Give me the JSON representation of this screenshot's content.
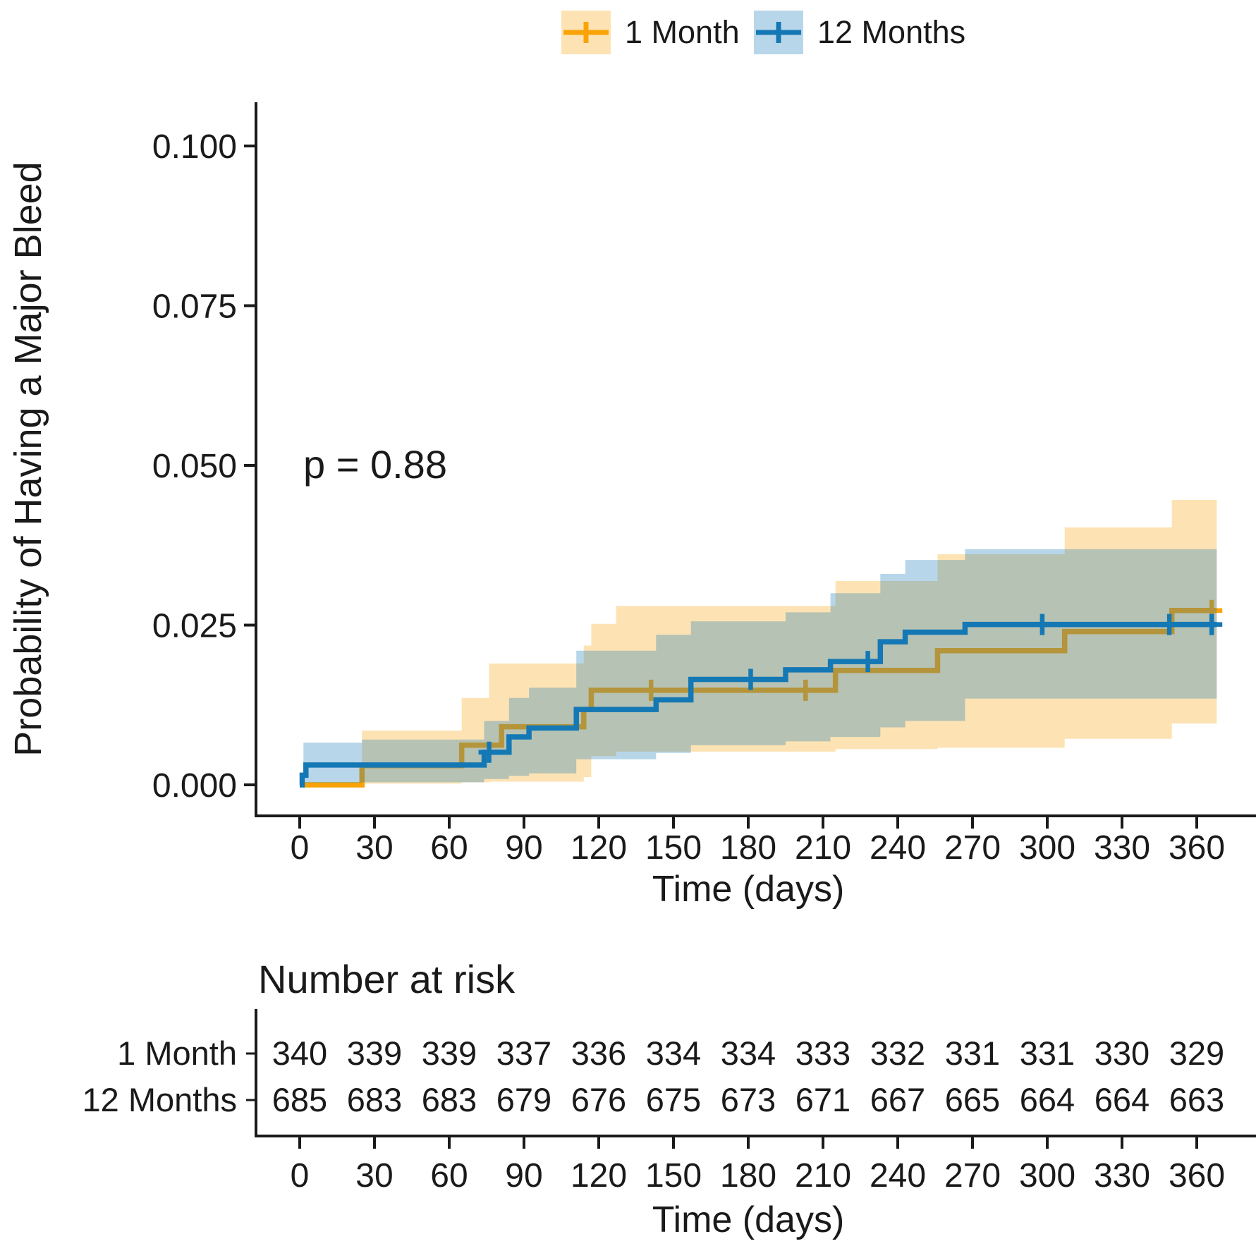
{
  "figure": {
    "p_value_annotation": "p = 0.88",
    "axis_color": "#1A1A1A",
    "text_color": "#1A1A1A"
  },
  "legend": {
    "position": "top-center",
    "items": [
      {
        "label": "1 Month",
        "swatch_icon": "censor-plus-icon",
        "color": "#F9A306"
      },
      {
        "label": "12 Months",
        "swatch_icon": "censor-plus-icon",
        "color": "#1478B5"
      }
    ]
  },
  "chart_data": {
    "type": "line",
    "subtype": "kaplan-meier-step",
    "title": "",
    "xlabel": "Time (days)",
    "ylabel": "Probability of Having a Major Bleed",
    "annotation": "p = 0.88",
    "xlim": [
      0,
      372
    ],
    "ylim": [
      0,
      0.105
    ],
    "grid": false,
    "legend_position": "top",
    "xticks": [
      0,
      30,
      60,
      90,
      120,
      150,
      180,
      210,
      240,
      270,
      300,
      330,
      360
    ],
    "yticks": [
      {
        "label": "0.000",
        "value": 0.0
      },
      {
        "label": "0.025",
        "value": 0.025
      },
      {
        "label": "0.050",
        "value": 0.05
      },
      {
        "label": "0.075",
        "value": 0.075
      },
      {
        "label": "0.100",
        "value": 0.1
      }
    ],
    "series": [
      {
        "name": "1 Month",
        "color": "#F9A306",
        "ribbon_opacity": 0.3,
        "end_day": 368,
        "steps": [
          [
            0,
            0
          ],
          [
            25,
            0.003
          ],
          [
            65,
            0.0062
          ],
          [
            81,
            0.0091
          ],
          [
            114,
            0.0118
          ],
          [
            117,
            0.0148
          ],
          [
            215,
            0.0179
          ],
          [
            256,
            0.021
          ],
          [
            307,
            0.024
          ],
          [
            350,
            0.0273
          ]
        ],
        "censors": [
          [
            141,
            0.0148
          ],
          [
            203,
            0.0148
          ],
          [
            366,
            0.0273
          ]
        ],
        "ribbon_steps": [
          [
            25,
            0.0002,
            0.0085
          ],
          [
            65,
            0.0004,
            0.0136
          ],
          [
            76,
            0.0005,
            0.019
          ],
          [
            114,
            0.0012,
            0.0218
          ],
          [
            117,
            0.0045,
            0.0252
          ],
          [
            127,
            0.0052,
            0.028
          ],
          [
            215,
            0.0056,
            0.0319
          ],
          [
            256,
            0.0058,
            0.0361
          ],
          [
            307,
            0.0072,
            0.0403
          ],
          [
            350,
            0.0096,
            0.0446
          ]
        ]
      },
      {
        "name": "12 Months",
        "color": "#1478B5",
        "ribbon_opacity": 0.3,
        "end_day": 368,
        "steps": [
          [
            0,
            0
          ],
          [
            1,
            0.0015
          ],
          [
            2.5,
            0.0031
          ],
          [
            74,
            0.0051
          ],
          [
            84,
            0.0075
          ],
          [
            92,
            0.0089
          ],
          [
            111,
            0.0118
          ],
          [
            143,
            0.0133
          ],
          [
            157,
            0.0165
          ],
          [
            195,
            0.018
          ],
          [
            213,
            0.0193
          ],
          [
            233,
            0.0224
          ],
          [
            243,
            0.0239
          ],
          [
            267,
            0.0251
          ]
        ],
        "censors": [
          [
            76,
            0.0051
          ],
          [
            181,
            0.0165
          ],
          [
            228,
            0.0193
          ],
          [
            298,
            0.0251
          ],
          [
            349,
            0.0251
          ],
          [
            366,
            0.0251
          ]
        ],
        "ribbon_steps": [
          [
            1.5,
            0.0003,
            0.0066
          ],
          [
            25,
            0.0004,
            0.0071
          ],
          [
            74,
            0.0009,
            0.01
          ],
          [
            84,
            0.0014,
            0.0136
          ],
          [
            92,
            0.0018,
            0.0152
          ],
          [
            111,
            0.004,
            0.021
          ],
          [
            143,
            0.005,
            0.0235
          ],
          [
            157,
            0.0062,
            0.0256
          ],
          [
            195,
            0.0068,
            0.027
          ],
          [
            213,
            0.0075,
            0.03
          ],
          [
            233,
            0.009,
            0.033
          ],
          [
            243,
            0.01,
            0.0352
          ],
          [
            267,
            0.0135,
            0.0369
          ]
        ]
      }
    ]
  },
  "risk_table": {
    "title": "Number at risk",
    "xlabel": "Time (days)",
    "columns": [
      0,
      30,
      60,
      90,
      120,
      150,
      180,
      210,
      240,
      270,
      300,
      330,
      360
    ],
    "rows": [
      {
        "label": "1 Month",
        "color": "#F9A306",
        "values": [
          340,
          339,
          339,
          337,
          336,
          334,
          334,
          333,
          332,
          331,
          331,
          330,
          329
        ]
      },
      {
        "label": "12 Months",
        "color": "#1478B5",
        "values": [
          685,
          683,
          683,
          679,
          676,
          675,
          673,
          671,
          667,
          665,
          664,
          664,
          663
        ]
      }
    ]
  }
}
